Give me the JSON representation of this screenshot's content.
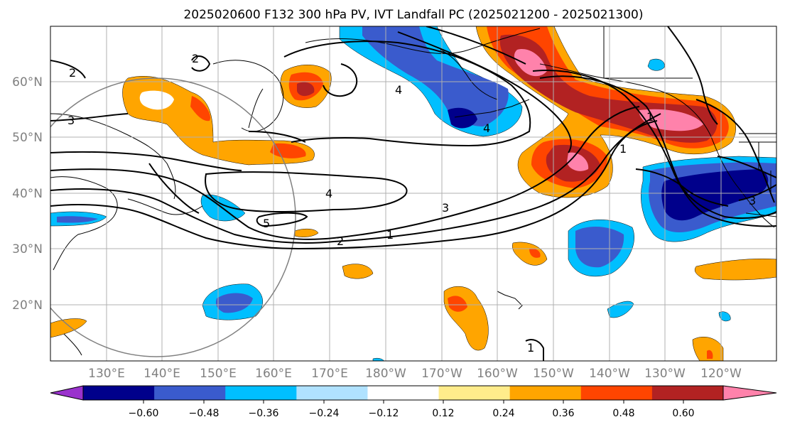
{
  "title": "2025020600 F132 300 hPa PV, IVT Landfall PC (2025021200 - 2025021300)",
  "lat_labels": [
    "60°N",
    "50°N",
    "40°N",
    "30°N",
    "20°N"
  ],
  "lon_labels": [
    "130°E",
    "140°E",
    "150°E",
    "160°E",
    "170°E",
    "180°W",
    "170°W",
    "160°W",
    "150°W",
    "140°W",
    "130°W",
    "120°W"
  ],
  "colorbar": {
    "tick_labels": [
      "−0.60",
      "−0.48",
      "−0.36",
      "−0.24",
      "−0.12",
      "0.12",
      "0.24",
      "0.36",
      "0.48",
      "0.60"
    ],
    "colors": [
      "#9a32cd",
      "#00008b",
      "#3a5bcd",
      "#00bfff",
      "#b0e2ff",
      "#ffffff",
      "#ffec8b",
      "#ffa500",
      "#ff4500",
      "#b22222",
      "#ff82ab"
    ]
  },
  "contour_labels": [
    "2",
    "3",
    "4",
    "5",
    "2",
    "1",
    "3",
    "4",
    "4",
    "1",
    "1",
    "3",
    "1"
  ]
}
